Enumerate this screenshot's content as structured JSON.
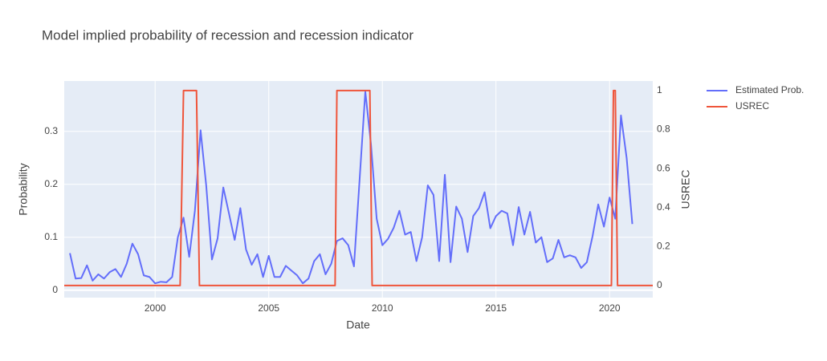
{
  "chart_data": {
    "type": "line",
    "title": "Model implied probability of recession and recession indicator",
    "x_label": "Date",
    "y_label": "Probability",
    "y2_label": "USREC",
    "xlim": [
      1996.0,
      2021.9
    ],
    "xticks": [
      2000,
      2005,
      2010,
      2015,
      2020
    ],
    "ylim": [
      -0.014,
      0.395
    ],
    "yticks": [
      0,
      0.1,
      0.2,
      0.3
    ],
    "y2lim": [
      -0.062,
      1.049
    ],
    "y2ticks": [
      0,
      0.2,
      0.4,
      0.6,
      0.8,
      1
    ],
    "grid": true,
    "legend": "top-right",
    "series": [
      {
        "name": "Estimated Prob.",
        "color": "#636efa",
        "x": [
          1996.25,
          1996.5,
          1996.75,
          1997.0,
          1997.25,
          1997.5,
          1997.75,
          1998.0,
          1998.25,
          1998.5,
          1998.75,
          1999.0,
          1999.25,
          1999.5,
          1999.75,
          2000.0,
          2000.25,
          2000.5,
          2000.75,
          2001.0,
          2001.25,
          2001.5,
          2001.75,
          2002.0,
          2002.25,
          2002.5,
          2002.75,
          2003.0,
          2003.25,
          2003.5,
          2003.75,
          2004.0,
          2004.25,
          2004.5,
          2004.75,
          2005.0,
          2005.25,
          2005.5,
          2005.75,
          2006.0,
          2006.25,
          2006.5,
          2006.75,
          2007.0,
          2007.25,
          2007.5,
          2007.75,
          2008.0,
          2008.25,
          2008.5,
          2008.75,
          2009.0,
          2009.25,
          2009.5,
          2009.75,
          2010.0,
          2010.25,
          2010.5,
          2010.75,
          2011.0,
          2011.25,
          2011.5,
          2011.75,
          2012.0,
          2012.25,
          2012.5,
          2012.75,
          2013.0,
          2013.25,
          2013.5,
          2013.75,
          2014.0,
          2014.25,
          2014.5,
          2014.75,
          2015.0,
          2015.25,
          2015.5,
          2015.75,
          2016.0,
          2016.25,
          2016.5,
          2016.75,
          2017.0,
          2017.25,
          2017.5,
          2017.75,
          2018.0,
          2018.25,
          2018.5,
          2018.75,
          2019.0,
          2019.25,
          2019.5,
          2019.75,
          2020.0,
          2020.25,
          2020.5,
          2020.75,
          2021.0
        ],
        "values": [
          0.07,
          0.022,
          0.023,
          0.047,
          0.018,
          0.03,
          0.022,
          0.034,
          0.04,
          0.025,
          0.05,
          0.088,
          0.068,
          0.028,
          0.025,
          0.013,
          0.016,
          0.015,
          0.025,
          0.1,
          0.137,
          0.063,
          0.15,
          0.302,
          0.197,
          0.058,
          0.098,
          0.194,
          0.145,
          0.095,
          0.155,
          0.077,
          0.048,
          0.068,
          0.025,
          0.065,
          0.025,
          0.025,
          0.046,
          0.037,
          0.028,
          0.013,
          0.022,
          0.055,
          0.068,
          0.03,
          0.05,
          0.093,
          0.098,
          0.085,
          0.045,
          0.21,
          0.375,
          0.275,
          0.135,
          0.085,
          0.097,
          0.118,
          0.15,
          0.105,
          0.11,
          0.055,
          0.1,
          0.198,
          0.18,
          0.055,
          0.218,
          0.053,
          0.158,
          0.135,
          0.072,
          0.14,
          0.155,
          0.185,
          0.117,
          0.14,
          0.15,
          0.145,
          0.085,
          0.157,
          0.105,
          0.148,
          0.09,
          0.1,
          0.053,
          0.06,
          0.095,
          0.062,
          0.066,
          0.062,
          0.042,
          0.053,
          0.102,
          0.162,
          0.12,
          0.175,
          0.135,
          0.33,
          0.25,
          0.125
        ]
      },
      {
        "name": "USREC",
        "color": "#ef553b",
        "axis": "y2",
        "x": [
          1996.0,
          2001.1,
          2001.25,
          2001.82,
          2001.95,
          2007.92,
          2008.0,
          2009.45,
          2009.55,
          2020.08,
          2020.17,
          2020.25,
          2020.35,
          2021.9
        ],
        "values": [
          0,
          0,
          1,
          1,
          0,
          0,
          1,
          1,
          0,
          0,
          1,
          1,
          0,
          0
        ]
      }
    ]
  }
}
